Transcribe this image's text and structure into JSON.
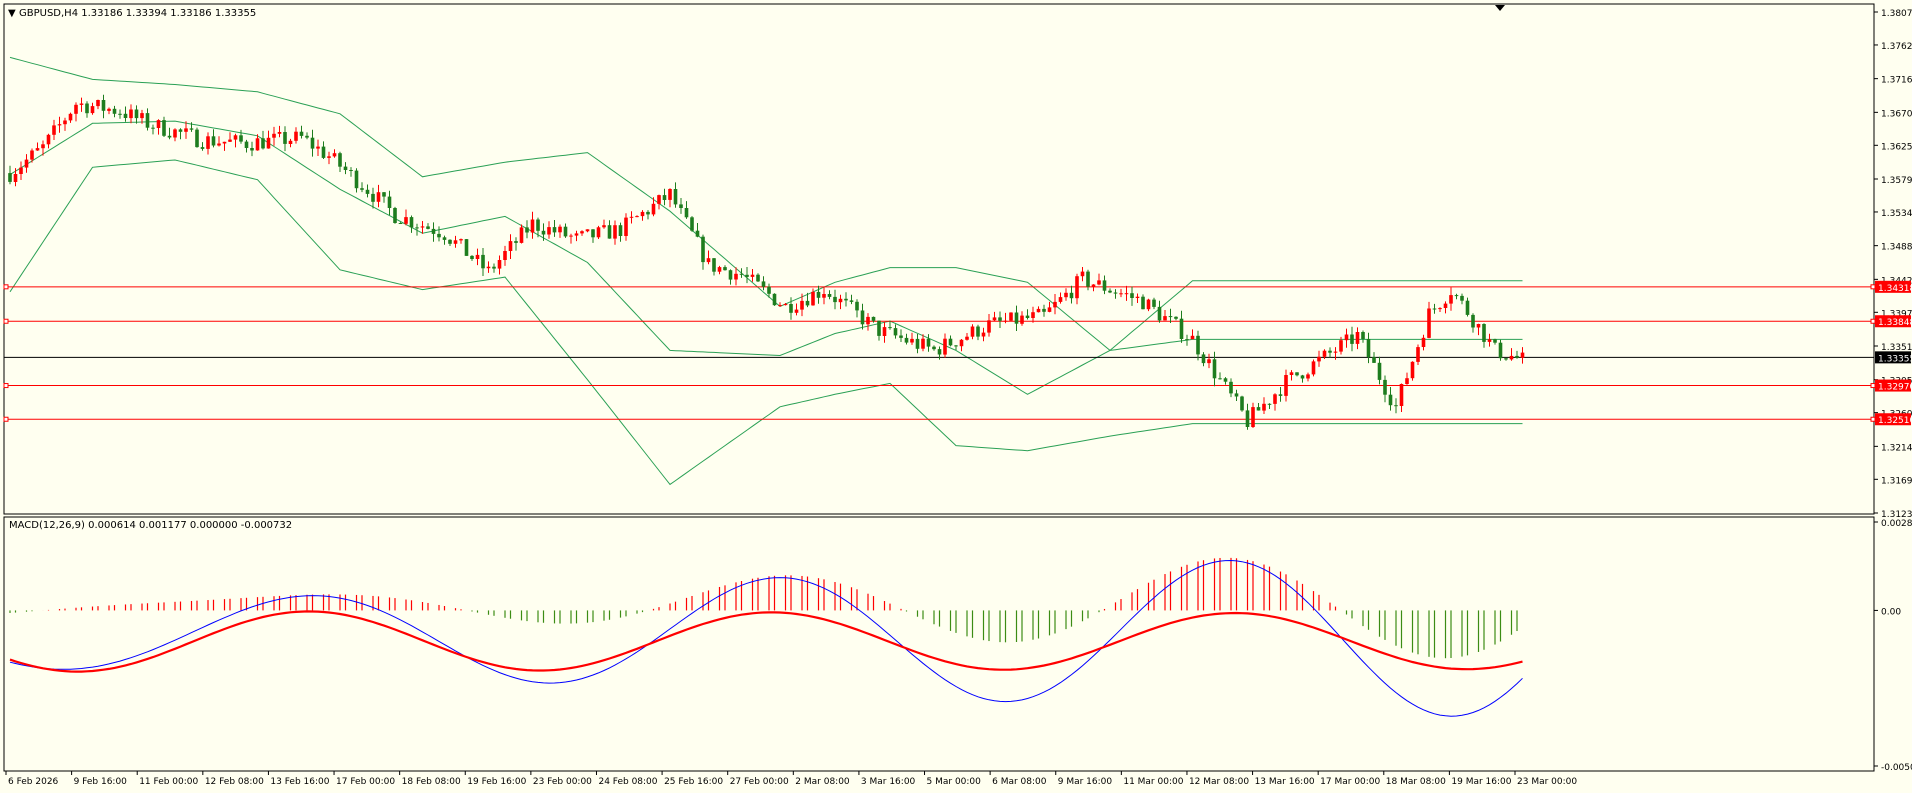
{
  "window": {
    "title": "GBPUSD,H4  1.33186 1.33394 1.33186 1.33355",
    "macd_title": "MACD(12,26,9) 0.000614 0.001177 0.000000 -0.000732"
  },
  "colors": {
    "background": "#fffff0",
    "bull_candle": "#ff0000",
    "bear_candle": "#1e7d1e",
    "bands": "#2aa055",
    "level_line": "#ff0000",
    "bid_line": "#000000",
    "macd_line": "#0000ff",
    "signal_line": "#ff0000",
    "hist_positive": "#ff0000",
    "hist_negative": "#3c8c14"
  },
  "chart_data": [
    {
      "type": "candlestick",
      "symbol": "GBPUSD",
      "timeframe": "H4",
      "ylim": [
        1.3123,
        1.3807
      ],
      "y_ticks": [
        "1.38070",
        "1.37620",
        "1.37160",
        "1.36700",
        "1.36250",
        "1.35790",
        "1.35340",
        "1.34880",
        "1.34420",
        "1.33970",
        "1.33510",
        "1.33050",
        "1.32600",
        "1.32140",
        "1.31690",
        "1.31230"
      ],
      "x_ticks": [
        "6 Feb 2026",
        "9 Feb 16:00",
        "11 Feb 00:00",
        "12 Feb 08:00",
        "13 Feb 16:00",
        "17 Feb 00:00",
        "18 Feb 08:00",
        "19 Feb 16:00",
        "23 Feb 00:00",
        "24 Feb 08:00",
        "25 Feb 16:00",
        "27 Feb 00:00",
        "2 Mar 08:00",
        "3 Mar 16:00",
        "5 Mar 00:00",
        "6 Mar 08:00",
        "9 Mar 16:00",
        "11 Mar 00:00",
        "12 Mar 08:00",
        "13 Mar 16:00",
        "17 Mar 00:00",
        "18 Mar 08:00",
        "19 Mar 16:00",
        "23 Mar 00:00"
      ],
      "horizontal_levels": [
        {
          "label": "1.34318",
          "value": 1.34318
        },
        {
          "label": "1.33848",
          "value": 1.33848
        },
        {
          "label": "1.32970",
          "value": 1.3297
        },
        {
          "label": "1.32510",
          "value": 1.3251
        }
      ],
      "bid": {
        "label": "1.33355",
        "value": 1.33355
      },
      "bollinger_anchors": [
        [
          0,
          1.3585,
          1.3745,
          1.3425
        ],
        [
          15,
          1.3655,
          1.3715,
          1.3595
        ],
        [
          30,
          1.3658,
          1.3708,
          1.3605
        ],
        [
          45,
          1.3638,
          1.3698,
          1.3578
        ],
        [
          60,
          1.3565,
          1.3668,
          1.3455
        ],
        [
          75,
          1.3505,
          1.3582,
          1.3428
        ],
        [
          90,
          1.3528,
          1.3602,
          1.3445
        ],
        [
          105,
          1.3465,
          1.3615,
          1.3305
        ],
        [
          120,
          1.3345,
          1.3535,
          1.3162
        ],
        [
          140,
          1.3338,
          1.3405,
          1.3268
        ],
        [
          150,
          1.3368,
          1.3438,
          1.3285
        ],
        [
          160,
          1.3385,
          1.3458,
          1.33
        ],
        [
          172,
          1.3345,
          1.3458,
          1.3215
        ],
        [
          185,
          1.3285,
          1.3438,
          1.3208
        ],
        [
          200,
          1.3345,
          1.3345,
          1.3228
        ],
        [
          215,
          1.336,
          1.344,
          1.3245
        ]
      ],
      "candle_path_anchors": [
        [
          0,
          1.3587
        ],
        [
          6,
          1.3622
        ],
        [
          12,
          1.3682
        ],
        [
          20,
          1.3672
        ],
        [
          25,
          1.3655
        ],
        [
          35,
          1.3632
        ],
        [
          43,
          1.3628
        ],
        [
          53,
          1.3635
        ],
        [
          58,
          1.361
        ],
        [
          65,
          1.3565
        ],
        [
          70,
          1.353
        ],
        [
          79,
          1.3505
        ],
        [
          87,
          1.3452
        ],
        [
          95,
          1.3518
        ],
        [
          103,
          1.3497
        ],
        [
          111,
          1.351
        ],
        [
          120,
          1.3558
        ],
        [
          127,
          1.3462
        ],
        [
          133,
          1.3448
        ],
        [
          141,
          1.3405
        ],
        [
          148,
          1.3428
        ],
        [
          158,
          1.3372
        ],
        [
          168,
          1.3345
        ],
        [
          178,
          1.338
        ],
        [
          188,
          1.3392
        ],
        [
          195,
          1.3442
        ],
        [
          206,
          1.3412
        ],
        [
          215,
          1.336
        ],
        [
          225,
          1.3248
        ],
        [
          232,
          1.3302
        ],
        [
          245,
          1.3365
        ],
        [
          252,
          1.3268
        ],
        [
          258,
          1.3395
        ],
        [
          262,
          1.3428
        ],
        [
          266,
          1.3388
        ],
        [
          270,
          1.3345
        ],
        [
          275,
          1.3332
        ]
      ]
    },
    {
      "type": "macd",
      "title": "MACD(12,26,9)",
      "ylim": [
        -0.00505,
        0.00287
      ],
      "y_ticks": [
        "0.00287",
        "0.00",
        "-0.00505"
      ]
    }
  ]
}
